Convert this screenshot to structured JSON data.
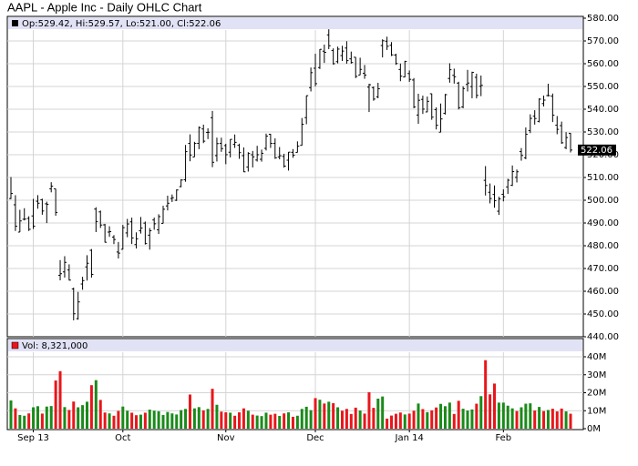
{
  "chart_data": {
    "type": "ohlc",
    "title": "AAPL - Apple Inc - Daily OHLC Chart",
    "header": "Op:529.42, Hi:529.57, Lo:521.00, Cl:522.06",
    "volume_header": "Vol: 8,321,000",
    "bar_color": "#000000",
    "up_color": "#1a8a1a",
    "down_color": "#e8161b",
    "grid": true,
    "open": [
      500.75,
      498.0,
      486.0,
      491.65,
      492.0,
      493.1,
      499.56,
      500.25,
      498.44,
      505.0,
      505.0,
      467.01,
      468.5,
      469.34,
      461.0,
      447.96,
      463.18,
      470.71,
      478.0,
      496.1,
      494.88,
      489.2,
      486.0,
      483.78,
      477.25,
      478.45,
      485.63,
      490.51,
      480.52,
      486.56,
      489.94,
      484.64,
      491.32,
      486.99,
      489.83,
      497.51,
      500.79,
      499.98,
      505.99,
      509.0,
      525.0,
      519.0,
      525.0,
      531.32,
      529.78,
      536.27,
      519.61,
      525.0,
      524.02,
      521.1,
      524.58,
      524.15,
      519.58,
      514.58,
      519.99,
      517.67,
      518.0,
      522.81,
      529.0,
      524.99,
      519.03,
      519.23,
      517.6,
      521.06,
      521.02,
      524.12,
      536.31,
      549.48,
      558.0,
      558.3,
      565.5,
      572.65,
      565.79,
      560.9,
      563.58,
      566.89,
      562.14,
      562.85,
      555.02,
      555.81,
      549.7,
      549.5,
      545.43,
      568.0,
      569.89,
      568.1,
      563.82,
      557.46,
      554.17,
      555.68,
      552.83,
      537.45,
      544.32,
      538.81,
      546.8,
      539.83,
      529.91,
      538.22,
      553.52,
      554.9,
      551.48,
      540.99,
      550.91,
      549.94,
      554.0,
      550.07,
      508.76,
      503.5,
      502.54,
      495.18,
      502.61,
      505.85,
      506.56,
      510.06,
      521.38,
      518.66,
      530.61,
      536.95,
      534.66,
      542.47,
      546.0,
      545.74,
      532.99,
      532.79,
      523.15,
      529.42
    ],
    "high": [
      510.2,
      502.22,
      495.8,
      496.5,
      492.95,
      500.6,
      502.24,
      500.68,
      499.38,
      507.92,
      505.0,
      473.69,
      475.4,
      471.83,
      461.61,
      459.71,
      466.35,
      475.83,
      478.55,
      496.91,
      495.47,
      489.64,
      488.56,
      484.67,
      481.66,
      489.14,
      491.8,
      492.35,
      485.89,
      492.65,
      490.64,
      487.79,
      492.38,
      493.84,
      497.58,
      502.0,
      502.53,
      504.78,
      509.26,
      524.3,
      528.95,
      525.67,
      532.47,
      533.23,
      531.62,
      539.25,
      527.52,
      527.49,
      524.8,
      526.82,
      528.89,
      524.86,
      523.19,
      521.13,
      521.67,
      523.92,
      522.25,
      529.28,
      529.16,
      527.19,
      523.38,
      520.42,
      521.2,
      522.48,
      525.87,
      536.14,
      546.0,
      558.33,
      564.39,
      566.38,
      568.41,
      575.14,
      566.75,
      567.5,
      567.88,
      569.88,
      565.34,
      562.88,
      562.64,
      559.44,
      551.19,
      550.0,
      551.61,
      570.72,
      571.88,
      569.5,
      564.41,
      560.09,
      561.28,
      557.03,
      553.7,
      546.8,
      545.96,
      545.56,
      546.86,
      540.8,
      542.5,
      546.73,
      560.2,
      557.84,
      552.07,
      550.07,
      557.29,
      556.5,
      555.62,
      554.8,
      515.0,
      507.37,
      506.5,
      501.53,
      504.77,
      509.46,
      515.28,
      513.5,
      522.93,
      531.99,
      537.75,
      539.56,
      544.85,
      545.98,
      551.19,
      546.89,
      537.0,
      534.57,
      529.92,
      529.57
    ],
    "low": [
      500.5,
      486.5,
      486.0,
      491.13,
      486.5,
      487.35,
      496.28,
      493.64,
      489.95,
      503.48,
      493.2,
      464.81,
      466.01,
      464.7,
      447.22,
      447.5,
      460.66,
      464.7,
      466.0,
      486.0,
      487.82,
      481.43,
      483.9,
      480.72,
      474.41,
      478.38,
      483.75,
      480.74,
      478.79,
      485.35,
      480.54,
      478.28,
      487.04,
      485.16,
      489.8,
      495.52,
      499.23,
      499.68,
      505.71,
      508.12,
      517.13,
      519.0,
      522.45,
      525.11,
      526.88,
      514.54,
      517.02,
      521.27,
      515.84,
      518.81,
      523.0,
      518.2,
      512.38,
      512.59,
      514.41,
      517.0,
      516.96,
      521.87,
      523.0,
      518.2,
      517.97,
      514.33,
      513.04,
      518.65,
      521.0,
      524.0,
      533.4,
      547.81,
      550.06,
      557.68,
      560.36,
      566.41,
      559.57,
      560.14,
      561.2,
      560.0,
      560.03,
      553.67,
      555.01,
      553.38,
      538.77,
      543.73,
      544.82,
      562.76,
      566.03,
      563.38,
      559.5,
      552.32,
      554.0,
      552.02,
      540.43,
      533.6,
      537.92,
      538.69,
      535.35,
      531.11,
      529.88,
      537.66,
      551.66,
      551.26,
      539.9,
      540.42,
      547.81,
      544.81,
      544.75,
      545.75,
      502.07,
      498.62,
      496.7,
      493.55,
      499.5,
      502.76,
      506.25,
      507.81,
      517.38,
      518.0,
      529.5,
      533.24,
      534.2,
      541.21,
      545.61,
      534.35,
      529.0,
      524.8,
      522.42,
      521.0
    ],
    "close": [
      502.97,
      488.59,
      490.9,
      491.7,
      487.22,
      488.58,
      498.69,
      495.27,
      498.22,
      506.17,
      494.64,
      467.71,
      472.69,
      464.9,
      450.12,
      455.32,
      464.68,
      472.3,
      467.41,
      490.64,
      489.1,
      481.53,
      486.22,
      482.75,
      476.75,
      487.96,
      489.56,
      483.41,
      483.03,
      487.75,
      480.94,
      486.59,
      489.64,
      492.81,
      496.04,
      498.68,
      501.11,
      504.5,
      508.89,
      521.36,
      519.87,
      524.96,
      531.91,
      525.96,
      529.88,
      516.68,
      524.9,
      522.7,
      520.03,
      526.75,
      525.45,
      520.92,
      512.49,
      520.56,
      519.05,
      520.01,
      520.63,
      528.16,
      524.99,
      518.63,
      519.55,
      515.0,
      521.14,
      519.8,
      523.74,
      533.4,
      545.96,
      556.07,
      551.23,
      566.32,
      565.0,
      567.9,
      560.02,
      566.43,
      565.55,
      561.36,
      560.54,
      554.43,
      557.5,
      554.99,
      550.77,
      544.46,
      549.02,
      570.09,
      567.67,
      563.9,
      560.09,
      554.52,
      561.02,
      553.13,
      540.98,
      543.93,
      540.04,
      543.46,
      536.52,
      532.94,
      535.73,
      546.39,
      557.36,
      554.25,
      540.67,
      549.07,
      551.51,
      556.18,
      546.07,
      550.5,
      506.5,
      500.75,
      499.78,
      500.6,
      501.53,
      508.79,
      512.59,
      512.51,
      519.68,
      528.99,
      535.96,
      535.92,
      544.43,
      543.99,
      545.99,
      537.37,
      531.15,
      525.25,
      527.55,
      522.06
    ],
    "volume": [
      15700000,
      11300000,
      7600000,
      7200000,
      8500000,
      11900000,
      12500000,
      8400000,
      12300000,
      12600000,
      26800000,
      32000000,
      12000000,
      10400000,
      15100000,
      11900000,
      13100000,
      15000000,
      24200000,
      27000000,
      16000000,
      9000000,
      8500000,
      7200000,
      9900000,
      12300000,
      10000000,
      8900000,
      7500000,
      7800000,
      8900000,
      10600000,
      10000000,
      9700000,
      7600000,
      9300000,
      8500000,
      7900000,
      10300000,
      11000000,
      19000000,
      11300000,
      12000000,
      10200000,
      11000000,
      22200000,
      13300000,
      9500000,
      9100000,
      8900000,
      7200000,
      9100000,
      11300000,
      10000000,
      7800000,
      7300000,
      7000000,
      8900000,
      7800000,
      8300000,
      7100000,
      8500000,
      9100000,
      6600000,
      7200000,
      11000000,
      12200000,
      10300000,
      17000000,
      16100000,
      14000000,
      15000000,
      14200000,
      11900000,
      10000000,
      11000000,
      8200000,
      11700000,
      10100000,
      8400000,
      20300000,
      11600000,
      16700000,
      17900000,
      5600000,
      7300000,
      8300000,
      9000000,
      7900000,
      8400000,
      10000000,
      14000000,
      10900000,
      9200000,
      10200000,
      11800000,
      13800000,
      12500000,
      14500000,
      8200000,
      15500000,
      11100000,
      10100000,
      10700000,
      13900000,
      18100000,
      38100000,
      19100000,
      25100000,
      14500000,
      14500000,
      12800000,
      11300000,
      9800000,
      11900000,
      13900000,
      14100000,
      10100000,
      12100000,
      9800000,
      10400000,
      11100000,
      9600000,
      11200000,
      9600000,
      8321000
    ],
    "ylim": [
      440,
      580
    ],
    "yticks": [
      {
        "value": 440,
        "label": "440.00"
      },
      {
        "value": 450,
        "label": "450.00"
      },
      {
        "value": 460,
        "label": "460.00"
      },
      {
        "value": 470,
        "label": "470.00"
      },
      {
        "value": 480,
        "label": "480.00"
      },
      {
        "value": 490,
        "label": "490.00"
      },
      {
        "value": 500,
        "label": "500.00"
      },
      {
        "value": 510,
        "label": "510.00"
      },
      {
        "value": 520,
        "label": "520.00"
      },
      {
        "value": 530,
        "label": "530.00"
      },
      {
        "value": 540,
        "label": "540.00"
      },
      {
        "value": 550,
        "label": "550.00"
      },
      {
        "value": 560,
        "label": "560.00"
      },
      {
        "value": 570,
        "label": "570.00"
      },
      {
        "value": 580,
        "label": "580.00"
      }
    ],
    "volume_ylim": [
      0,
      40000000
    ],
    "volume_yticks": [
      {
        "value": 0,
        "label": "0M"
      },
      {
        "value": 10000000,
        "label": "10M"
      },
      {
        "value": 20000000,
        "label": "20M"
      },
      {
        "value": 30000000,
        "label": "30M"
      },
      {
        "value": 40000000,
        "label": "40M"
      }
    ],
    "xticks": [
      {
        "value": 5,
        "label": "Sep 13"
      },
      {
        "value": 25,
        "label": "Oct"
      },
      {
        "value": 48,
        "label": "Nov"
      },
      {
        "value": 68,
        "label": "Dec"
      },
      {
        "value": 89,
        "label": "Jan 14"
      },
      {
        "value": 110,
        "label": "Feb"
      }
    ]
  }
}
